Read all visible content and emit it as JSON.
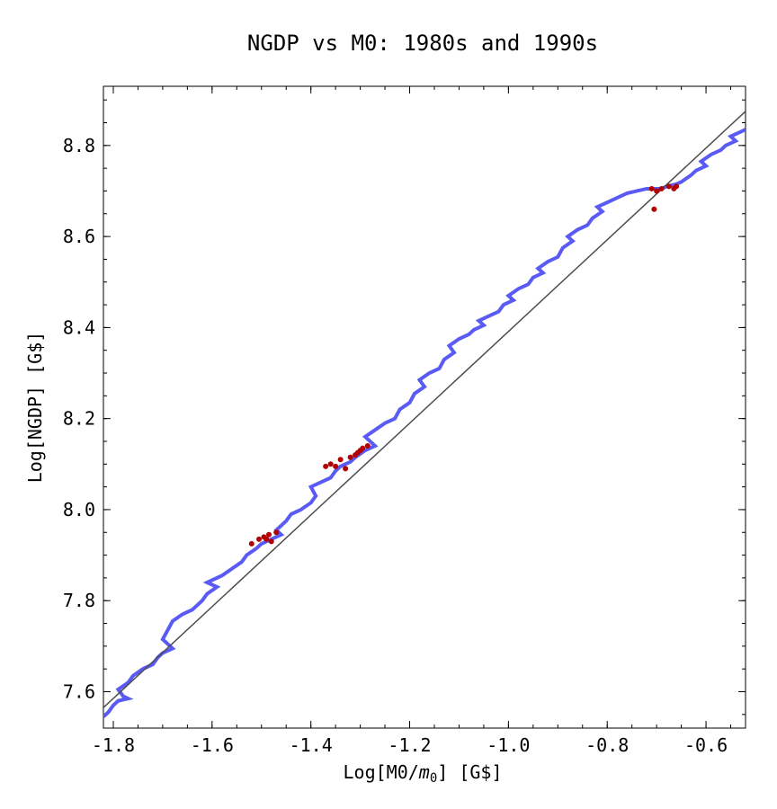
{
  "chart_data": {
    "type": "line",
    "title": "NGDP vs M0: 1980s and 1990s",
    "xlabel": {
      "prefix": "Log[M0/",
      "sym": "m",
      "sub": "0",
      "suffix": "] [G$]"
    },
    "ylabel": "Log[NGDP] [G$]",
    "xlim": [
      -1.82,
      -0.52
    ],
    "ylim": [
      7.52,
      8.93
    ],
    "xticks": [
      -1.8,
      -1.6,
      -1.4,
      -1.2,
      -1.0,
      -0.8,
      -0.6
    ],
    "xtick_labels": [
      "-1.8",
      "-1.6",
      "-1.4",
      "-1.2",
      "-1.0",
      "-0.8",
      "-0.6"
    ],
    "yticks": [
      7.6,
      7.8,
      8.0,
      8.2,
      8.4,
      8.6,
      8.8
    ],
    "ytick_labels": [
      "7.6",
      "7.8",
      "8.0",
      "8.2",
      "8.4",
      "8.6",
      "8.8"
    ],
    "grid": false,
    "series": [
      {
        "kind": "line",
        "color": "#5a5af5",
        "points": [
          [
            -1.82,
            7.545
          ],
          [
            -1.81,
            7.555
          ],
          [
            -1.8,
            7.57
          ],
          [
            -1.79,
            7.58
          ],
          [
            -1.77,
            7.585
          ],
          [
            -1.78,
            7.59
          ],
          [
            -1.79,
            7.605
          ],
          [
            -1.77,
            7.62
          ],
          [
            -1.76,
            7.635
          ],
          [
            -1.74,
            7.65
          ],
          [
            -1.72,
            7.66
          ],
          [
            -1.71,
            7.675
          ],
          [
            -1.7,
            7.685
          ],
          [
            -1.68,
            7.695
          ],
          [
            -1.7,
            7.715
          ],
          [
            -1.69,
            7.735
          ],
          [
            -1.68,
            7.755
          ],
          [
            -1.66,
            7.77
          ],
          [
            -1.64,
            7.78
          ],
          [
            -1.62,
            7.8
          ],
          [
            -1.61,
            7.815
          ],
          [
            -1.59,
            7.83
          ],
          [
            -1.61,
            7.84
          ],
          [
            -1.58,
            7.855
          ],
          [
            -1.56,
            7.87
          ],
          [
            -1.54,
            7.885
          ],
          [
            -1.53,
            7.9
          ],
          [
            -1.51,
            7.915
          ],
          [
            -1.5,
            7.925
          ],
          [
            -1.48,
            7.935
          ],
          [
            -1.46,
            7.945
          ],
          [
            -1.47,
            7.955
          ],
          [
            -1.45,
            7.975
          ],
          [
            -1.44,
            7.99
          ],
          [
            -1.42,
            8.0
          ],
          [
            -1.4,
            8.015
          ],
          [
            -1.39,
            8.03
          ],
          [
            -1.4,
            8.05
          ],
          [
            -1.38,
            8.06
          ],
          [
            -1.36,
            8.07
          ],
          [
            -1.35,
            8.085
          ],
          [
            -1.34,
            8.095
          ],
          [
            -1.32,
            8.105
          ],
          [
            -1.31,
            8.115
          ],
          [
            -1.29,
            8.13
          ],
          [
            -1.27,
            8.14
          ],
          [
            -1.29,
            8.16
          ],
          [
            -1.27,
            8.175
          ],
          [
            -1.25,
            8.19
          ],
          [
            -1.23,
            8.2
          ],
          [
            -1.22,
            8.22
          ],
          [
            -1.2,
            8.235
          ],
          [
            -1.19,
            8.255
          ],
          [
            -1.17,
            8.27
          ],
          [
            -1.18,
            8.285
          ],
          [
            -1.16,
            8.3
          ],
          [
            -1.14,
            8.31
          ],
          [
            -1.13,
            8.33
          ],
          [
            -1.11,
            8.345
          ],
          [
            -1.12,
            8.36
          ],
          [
            -1.1,
            8.375
          ],
          [
            -1.08,
            8.385
          ],
          [
            -1.07,
            8.395
          ],
          [
            -1.05,
            8.405
          ],
          [
            -1.06,
            8.415
          ],
          [
            -1.04,
            8.425
          ],
          [
            -1.02,
            8.435
          ],
          [
            -1.01,
            8.45
          ],
          [
            -0.99,
            8.46
          ],
          [
            -1.0,
            8.47
          ],
          [
            -0.98,
            8.485
          ],
          [
            -0.96,
            8.495
          ],
          [
            -0.95,
            8.51
          ],
          [
            -0.93,
            8.52
          ],
          [
            -0.94,
            8.53
          ],
          [
            -0.92,
            8.545
          ],
          [
            -0.9,
            8.555
          ],
          [
            -0.89,
            8.575
          ],
          [
            -0.87,
            8.59
          ],
          [
            -0.88,
            8.6
          ],
          [
            -0.86,
            8.615
          ],
          [
            -0.84,
            8.625
          ],
          [
            -0.83,
            8.64
          ],
          [
            -0.81,
            8.655
          ],
          [
            -0.82,
            8.665
          ],
          [
            -0.8,
            8.675
          ],
          [
            -0.78,
            8.685
          ],
          [
            -0.76,
            8.695
          ],
          [
            -0.74,
            8.7
          ],
          [
            -0.72,
            8.705
          ],
          [
            -0.71,
            8.705
          ],
          [
            -0.69,
            8.705
          ],
          [
            -0.68,
            8.71
          ],
          [
            -0.66,
            8.715
          ],
          [
            -0.65,
            8.72
          ],
          [
            -0.63,
            8.735
          ],
          [
            -0.62,
            8.745
          ],
          [
            -0.6,
            8.755
          ],
          [
            -0.61,
            8.765
          ],
          [
            -0.59,
            8.78
          ],
          [
            -0.57,
            8.79
          ],
          [
            -0.56,
            8.8
          ],
          [
            -0.54,
            8.81
          ],
          [
            -0.55,
            8.82
          ],
          [
            -0.53,
            8.83
          ],
          [
            -0.52,
            8.835
          ]
        ]
      },
      {
        "kind": "line",
        "color": "#4d4d4d",
        "points": [
          [
            -1.82,
            7.565
          ],
          [
            -0.52,
            8.875
          ]
        ]
      },
      {
        "kind": "scatter",
        "color": "#b30000",
        "points": [
          [
            -1.52,
            7.925
          ],
          [
            -1.505,
            7.935
          ],
          [
            -1.495,
            7.94
          ],
          [
            -1.49,
            7.935
          ],
          [
            -1.485,
            7.945
          ],
          [
            -1.48,
            7.93
          ],
          [
            -1.47,
            7.95
          ],
          [
            -1.37,
            8.095
          ],
          [
            -1.36,
            8.1
          ],
          [
            -1.35,
            8.095
          ],
          [
            -1.34,
            8.11
          ],
          [
            -1.33,
            8.09
          ],
          [
            -1.32,
            8.115
          ],
          [
            -1.31,
            8.12
          ],
          [
            -1.305,
            8.125
          ],
          [
            -1.3,
            8.13
          ],
          [
            -1.295,
            8.135
          ],
          [
            -1.285,
            8.14
          ],
          [
            -0.71,
            8.705
          ],
          [
            -0.7,
            8.7
          ],
          [
            -0.69,
            8.705
          ],
          [
            -0.675,
            8.71
          ],
          [
            -0.665,
            8.705
          ],
          [
            -0.66,
            8.71
          ],
          [
            -0.705,
            8.66
          ]
        ]
      }
    ]
  }
}
